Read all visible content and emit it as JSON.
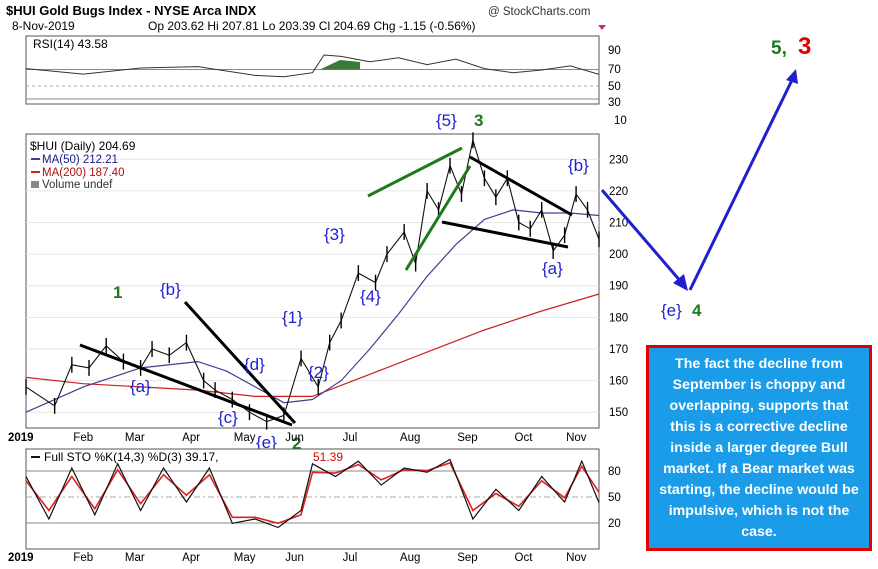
{
  "header": {
    "title": "$HUI Gold Bugs Index - NYSE Arca INDX",
    "watermark": "@ StockCharts.com",
    "date": "8-Nov-2019",
    "ohlc": "Op 203.62  Hi 207.81  Lo 203.39  Cl 204.69  Chg -1.15 (-0.56%)"
  },
  "rsi_panel": {
    "label": "RSI(14) 43.58",
    "ticks": [
      "90",
      "70",
      "50",
      "30",
      "10"
    ]
  },
  "price_panel": {
    "legend": [
      "$HUI (Daily) 204.69",
      "MA(50) 212.21",
      "MA(200) 187.40",
      "Volume undef"
    ],
    "ticks": [
      "230",
      "220",
      "210",
      "200",
      "190",
      "180",
      "170",
      "160",
      "150"
    ]
  },
  "sto_panel": {
    "label_main": "Full STO %K(14,3) %D(3) 39.17,",
    "label_d": "51.39",
    "ticks": [
      "80",
      "50",
      "20"
    ]
  },
  "x_axis": {
    "labels": [
      "2019",
      "Feb",
      "Mar",
      "Apr",
      "May",
      "Jun",
      "Jul",
      "Aug",
      "Sep",
      "Oct",
      "Nov"
    ]
  },
  "wave_labels": {
    "w1": "1",
    "b1": "{b}",
    "a1": "{a}",
    "c1": "{c}",
    "d1": "{d}",
    "e1": "{e}",
    "w2": "2",
    "s1": "{1}",
    "s2": "{2}",
    "s3": "{3}",
    "s4": "{4}",
    "s5": "{5}",
    "w3": "3",
    "a2": "{a}",
    "b2": "{b}",
    "e2": "{e}",
    "w4": "4",
    "w5": "5,",
    "w3b": "3"
  },
  "note": "The fact the decline from September is choppy and overlapping, supports that this is a corrective decline inside a larger degree Bull market. If a Bear market was starting, the decline would be impulsive, which is not the case.",
  "colors": {
    "blue": "#1f1fd0",
    "green": "#1e7a1e",
    "red": "#e00000",
    "ma50": "#404090",
    "ma200": "#cc2020"
  },
  "chart_data": {
    "type": "line",
    "title": "$HUI Gold Bugs Index - NYSE Arca INDX",
    "x_labels": [
      "2019",
      "Feb",
      "Mar",
      "Apr",
      "May",
      "Jun",
      "Jul",
      "Aug",
      "Sep",
      "Oct",
      "Nov"
    ],
    "price_axis": [
      145,
      238
    ],
    "price_ticks": [
      150,
      160,
      170,
      180,
      190,
      200,
      210,
      220,
      230
    ],
    "rsi_ticks": [
      10,
      30,
      50,
      70,
      90
    ],
    "sto_ticks": [
      20,
      50,
      80
    ],
    "series": [
      {
        "name": "$HUI (Daily)",
        "x": [
          0,
          0.05,
          0.08,
          0.11,
          0.14,
          0.17,
          0.2,
          0.22,
          0.25,
          0.28,
          0.31,
          0.33,
          0.36,
          0.39,
          0.42,
          0.45,
          0.48,
          0.51,
          0.53,
          0.55,
          0.58,
          0.61,
          0.63,
          0.66,
          0.68,
          0.7,
          0.72,
          0.74,
          0.76,
          0.78,
          0.8,
          0.82,
          0.84,
          0.86,
          0.88,
          0.9,
          0.92,
          0.94,
          0.96,
          0.98,
          1
        ],
        "values": [
          158,
          152,
          165,
          164,
          171,
          166,
          164,
          170,
          168,
          172,
          160,
          157,
          154,
          150,
          147,
          149,
          167,
          158,
          172,
          179,
          194,
          191,
          200,
          207,
          197,
          220,
          214,
          228,
          219,
          236,
          224,
          218,
          224,
          210,
          208,
          214,
          201,
          206,
          219,
          214,
          204.69
        ]
      },
      {
        "name": "MA(50)",
        "x": [
          0,
          0.1,
          0.2,
          0.3,
          0.35,
          0.4,
          0.45,
          0.5,
          0.55,
          0.6,
          0.65,
          0.7,
          0.75,
          0.8,
          0.85,
          0.9,
          0.95,
          1
        ],
        "values": [
          150,
          158,
          164,
          166,
          163,
          158,
          153,
          154,
          160,
          170,
          181,
          193,
          203,
          211,
          214,
          213,
          213,
          212.21
        ]
      },
      {
        "name": "MA(200)",
        "x": [
          0,
          0.1,
          0.2,
          0.3,
          0.4,
          0.5,
          0.6,
          0.7,
          0.8,
          0.9,
          1
        ],
        "values": [
          161,
          159,
          158,
          157,
          155,
          155,
          162,
          169,
          176,
          182,
          187.4
        ]
      },
      {
        "name": "RSI(14)",
        "x": [
          0,
          0.1,
          0.2,
          0.3,
          0.4,
          0.45,
          0.5,
          0.52,
          0.55,
          0.6,
          0.65,
          0.7,
          0.75,
          0.8,
          0.85,
          0.9,
          0.95,
          1
        ],
        "values": [
          52,
          44,
          53,
          55,
          42,
          40,
          46,
          72,
          70,
          62,
          68,
          58,
          66,
          52,
          46,
          50,
          56,
          43.58
        ]
      },
      {
        "name": "%K",
        "x": [
          0,
          0.04,
          0.08,
          0.12,
          0.16,
          0.2,
          0.24,
          0.28,
          0.32,
          0.36,
          0.4,
          0.44,
          0.48,
          0.5,
          0.54,
          0.58,
          0.62,
          0.66,
          0.7,
          0.74,
          0.78,
          0.82,
          0.86,
          0.9,
          0.94,
          0.97,
          1
        ],
        "values": [
          70,
          20,
          80,
          25,
          85,
          30,
          80,
          40,
          80,
          15,
          20,
          10,
          30,
          85,
          70,
          88,
          60,
          80,
          75,
          90,
          20,
          55,
          30,
          70,
          40,
          88,
          39.17
        ]
      },
      {
        "name": "%D",
        "x": [
          0,
          0.04,
          0.08,
          0.12,
          0.16,
          0.2,
          0.24,
          0.28,
          0.32,
          0.36,
          0.4,
          0.44,
          0.48,
          0.5,
          0.54,
          0.58,
          0.62,
          0.66,
          0.7,
          0.74,
          0.78,
          0.82,
          0.86,
          0.9,
          0.94,
          0.97,
          1
        ],
        "values": [
          65,
          30,
          70,
          32,
          78,
          38,
          72,
          48,
          72,
          22,
          22,
          15,
          25,
          75,
          74,
          84,
          66,
          78,
          77,
          86,
          30,
          50,
          35,
          65,
          45,
          82,
          51.39
        ]
      }
    ]
  }
}
